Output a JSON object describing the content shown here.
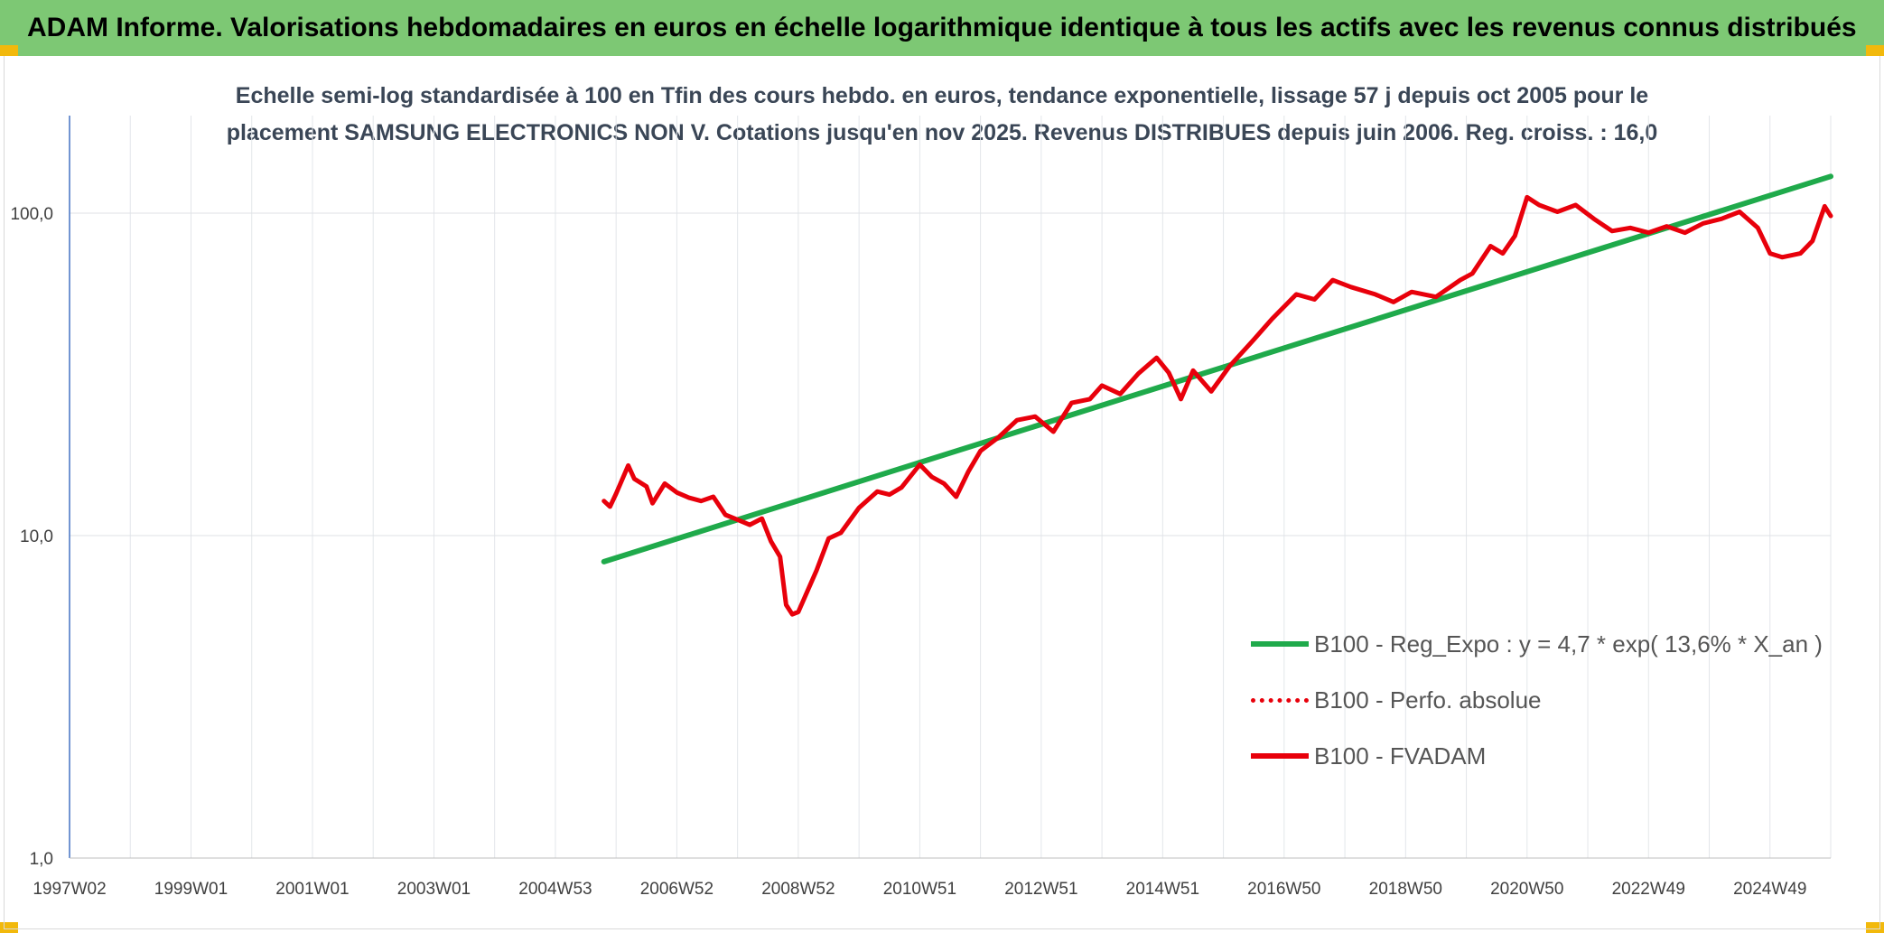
{
  "header": {
    "title": "ADAM Informe. Valorisations hebdomadaires en euros en échelle logarithmique identique à tous les actifs avec les revenus connus distribués"
  },
  "chart_data": {
    "type": "line",
    "title_line1": "Echelle semi-log standardisée à 100 en Tfin des cours hebdo. en euros, tendance exponentielle, lissage 57 j depuis oct 2005 pour le",
    "title_line2": "placement SAMSUNG ELECTRONICS NON V. Cotations jusqu'en nov 2025. Revenus DISTRIBUES depuis juin 2006. Reg. croiss. : 16,0",
    "yscale": "log",
    "ylim": [
      1,
      180
    ],
    "xlim": [
      1997.0,
      2026.0
    ],
    "grid": true,
    "legend_position": "bottom-right",
    "y_ticks": [
      {
        "value": 1,
        "label": "1,0"
      },
      {
        "value": 10,
        "label": "10,0"
      },
      {
        "value": 100,
        "label": "100,0"
      }
    ],
    "x_ticks": [
      {
        "value": 1997.0,
        "label": "1997W02"
      },
      {
        "value": 1999.0,
        "label": "1999W01"
      },
      {
        "value": 2001.0,
        "label": "2001W01"
      },
      {
        "value": 2003.0,
        "label": "2003W01"
      },
      {
        "value": 2005.0,
        "label": "2004W53"
      },
      {
        "value": 2007.0,
        "label": "2006W52"
      },
      {
        "value": 2009.0,
        "label": "2008W52"
      },
      {
        "value": 2011.0,
        "label": "2010W51"
      },
      {
        "value": 2013.0,
        "label": "2012W51"
      },
      {
        "value": 2015.0,
        "label": "2014W51"
      },
      {
        "value": 2017.0,
        "label": "2016W50"
      },
      {
        "value": 2019.0,
        "label": "2018W50"
      },
      {
        "value": 2021.0,
        "label": "2020W50"
      },
      {
        "value": 2023.0,
        "label": "2022W49"
      },
      {
        "value": 2025.0,
        "label": "2024W49"
      }
    ],
    "series": [
      {
        "name": "B100 - Reg_Expo : y = 4,7 * exp( 13,6% *  X_an )",
        "color": "#1faa4b",
        "style": "solid",
        "x": [
          2005.8,
          2026.0
        ],
        "y": [
          8.3,
          130
        ]
      },
      {
        "name": "B100 - Perfo. absolue",
        "color": "#e8000b",
        "style": "dotted",
        "x": [],
        "y": []
      },
      {
        "name": "B100 - FVADAM",
        "color": "#e8000b",
        "style": "solid",
        "x": [
          2005.8,
          2005.9,
          2006.0,
          2006.2,
          2006.3,
          2006.5,
          2006.6,
          2006.8,
          2007.0,
          2007.2,
          2007.4,
          2007.6,
          2007.8,
          2008.0,
          2008.2,
          2008.4,
          2008.55,
          2008.7,
          2008.8,
          2008.9,
          2009.0,
          2009.1,
          2009.3,
          2009.5,
          2009.7,
          2010.0,
          2010.3,
          2010.5,
          2010.7,
          2011.0,
          2011.2,
          2011.4,
          2011.6,
          2011.8,
          2012.0,
          2012.3,
          2012.6,
          2012.9,
          2013.2,
          2013.5,
          2013.8,
          2014.0,
          2014.3,
          2014.6,
          2014.9,
          2015.1,
          2015.3,
          2015.5,
          2015.8,
          2016.1,
          2016.5,
          2016.8,
          2017.2,
          2017.5,
          2017.8,
          2018.1,
          2018.5,
          2018.8,
          2019.1,
          2019.5,
          2019.9,
          2020.1,
          2020.4,
          2020.6,
          2020.8,
          2021.0,
          2021.2,
          2021.5,
          2021.8,
          2022.1,
          2022.4,
          2022.7,
          2023.0,
          2023.3,
          2023.6,
          2023.9,
          2024.2,
          2024.5,
          2024.8,
          2025.0,
          2025.2,
          2025.5,
          2025.7,
          2025.9,
          2026.0
        ],
        "y": [
          12.8,
          12.3,
          13.5,
          16.5,
          15.0,
          14.2,
          12.6,
          14.5,
          13.6,
          13.1,
          12.8,
          13.2,
          11.6,
          11.2,
          10.8,
          11.3,
          9.6,
          8.6,
          6.1,
          5.7,
          5.8,
          6.4,
          7.8,
          9.8,
          10.2,
          12.2,
          13.7,
          13.4,
          14.1,
          16.6,
          15.2,
          14.5,
          13.2,
          15.8,
          18.3,
          20.2,
          22.8,
          23.4,
          21.0,
          25.8,
          26.5,
          29.2,
          27.5,
          31.8,
          35.6,
          32.0,
          26.5,
          32.5,
          28.0,
          33.5,
          40.5,
          47.0,
          56.0,
          54.0,
          62.0,
          59.0,
          56.0,
          53.0,
          57.0,
          55.0,
          62.0,
          65.0,
          79.0,
          75.0,
          85.0,
          112.0,
          106.0,
          101.0,
          106.0,
          96.0,
          88.0,
          90.0,
          87.0,
          91.0,
          87.0,
          93.0,
          96.0,
          101.0,
          90.0,
          75.0,
          73.0,
          75.0,
          82.0,
          105.0,
          98.0
        ]
      }
    ]
  }
}
